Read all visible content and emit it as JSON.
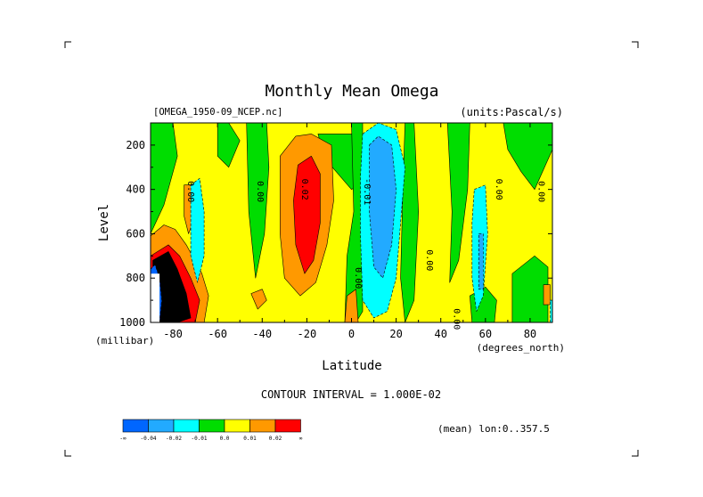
{
  "chart_data": {
    "type": "heatmap",
    "title": "Monthly Mean Omega",
    "dataset": "[OMEGA_1950-09_NCEP.nc]",
    "units": "(units:Pascal/s)",
    "xlabel": "Latitude",
    "xunits": "(degrees_north)",
    "ylabel": "Level",
    "yunits": "(millibar)",
    "xlim": [
      -90,
      90
    ],
    "ylim": [
      1000,
      100
    ],
    "x_ticks": [
      -80,
      -60,
      -40,
      -20,
      0,
      20,
      40,
      60,
      80
    ],
    "x_tick_labels": [
      "-80",
      "-60",
      "-40",
      "-20",
      "0",
      "20",
      "40",
      "60",
      "80"
    ],
    "y_ticks": [
      200,
      400,
      600,
      800,
      1000
    ],
    "y_tick_labels": [
      "200",
      "400",
      "600",
      "800",
      "1000"
    ],
    "contour_interval_text": "CONTOUR INTERVAL = 1.000E-02",
    "mean_text": "(mean) lon:0..357.5",
    "contour_labels": [
      {
        "text": "0.00",
        "lat": -72,
        "level": 410
      },
      {
        "text": "0.00",
        "lat": -41,
        "level": 410
      },
      {
        "text": "0.02",
        "lat": -21,
        "level": 400
      },
      {
        "text": "-0.01",
        "lat": 7,
        "level": 410
      },
      {
        "text": "0.00",
        "lat": 3,
        "level": 800
      },
      {
        "text": "0.00",
        "lat": 35,
        "level": 720
      },
      {
        "text": "0.00",
        "lat": 47,
        "level": 985
      },
      {
        "text": "0.00",
        "lat": 66,
        "level": 400
      },
      {
        "text": "0.00",
        "lat": 85,
        "level": 410
      }
    ],
    "regions": [
      {
        "level": 4,
        "points": [
          [
            -90,
            100
          ],
          [
            90,
            100
          ],
          [
            90,
            1000
          ],
          [
            -90,
            1000
          ]
        ]
      },
      {
        "level": 3,
        "points": [
          [
            -90,
            100
          ],
          [
            -80,
            100
          ],
          [
            -78,
            250
          ],
          [
            -84,
            470
          ],
          [
            -90,
            600
          ]
        ]
      },
      {
        "level": 3,
        "points": [
          [
            -60,
            100
          ],
          [
            -55,
            100
          ],
          [
            -50,
            180
          ],
          [
            -55,
            300
          ],
          [
            -60,
            250
          ]
        ]
      },
      {
        "level": 3,
        "points": [
          [
            -47,
            100
          ],
          [
            -38,
            100
          ],
          [
            -37,
            300
          ],
          [
            -39,
            600
          ],
          [
            -43,
            800
          ],
          [
            -46,
            500
          ]
        ]
      },
      {
        "level": 3,
        "points": [
          [
            -15,
            150
          ],
          [
            20,
            150
          ],
          [
            15,
            300
          ],
          [
            0,
            400
          ],
          [
            -12,
            260
          ]
        ]
      },
      {
        "level": 3,
        "points": [
          [
            0,
            100
          ],
          [
            5,
            100
          ],
          [
            5,
            950
          ],
          [
            2,
            1000
          ],
          [
            -3,
            1000
          ],
          [
            -2,
            700
          ],
          [
            1,
            500
          ]
        ]
      },
      {
        "level": 3,
        "points": [
          [
            24,
            100
          ],
          [
            28,
            100
          ],
          [
            30,
            500
          ],
          [
            28,
            900
          ],
          [
            24,
            1000
          ],
          [
            22,
            800
          ],
          [
            23,
            400
          ]
        ]
      },
      {
        "level": 3,
        "points": [
          [
            43,
            100
          ],
          [
            53,
            100
          ],
          [
            52,
            400
          ],
          [
            48,
            720
          ],
          [
            44,
            820
          ],
          [
            45,
            500
          ]
        ]
      },
      {
        "level": 3,
        "points": [
          [
            53,
            880
          ],
          [
            60,
            840
          ],
          [
            65,
            900
          ],
          [
            64,
            1000
          ],
          [
            54,
            1000
          ]
        ]
      },
      {
        "level": 3,
        "points": [
          [
            68,
            100
          ],
          [
            90,
            100
          ],
          [
            90,
            220
          ],
          [
            82,
            400
          ],
          [
            76,
            320
          ],
          [
            70,
            220
          ]
        ]
      },
      {
        "level": 3,
        "points": [
          [
            72,
            780
          ],
          [
            82,
            700
          ],
          [
            88,
            750
          ],
          [
            88,
            1000
          ],
          [
            72,
            1000
          ]
        ]
      },
      {
        "level": 5,
        "points": [
          [
            -90,
            610
          ],
          [
            -84,
            560
          ],
          [
            -79,
            580
          ],
          [
            -74,
            650
          ],
          [
            -67,
            780
          ],
          [
            -64,
            880
          ],
          [
            -66,
            1000
          ],
          [
            -90,
            1000
          ]
        ]
      },
      {
        "level": 5,
        "points": [
          [
            -75,
            380
          ],
          [
            -71,
            380
          ],
          [
            -70,
            520
          ],
          [
            -73,
            600
          ],
          [
            -75,
            520
          ]
        ]
      },
      {
        "level": 5,
        "points": [
          [
            -32,
            250
          ],
          [
            -25,
            160
          ],
          [
            -18,
            150
          ],
          [
            -9,
            200
          ],
          [
            -8,
            450
          ],
          [
            -11,
            650
          ],
          [
            -16,
            820
          ],
          [
            -23,
            880
          ],
          [
            -30,
            800
          ],
          [
            -32,
            600
          ]
        ]
      },
      {
        "level": 5,
        "points": [
          [
            -45,
            870
          ],
          [
            -40,
            850
          ],
          [
            -38,
            900
          ],
          [
            -42,
            940
          ]
        ]
      },
      {
        "level": 5,
        "points": [
          [
            -2,
            880
          ],
          [
            2,
            850
          ],
          [
            3,
            1000
          ],
          [
            -3,
            1000
          ]
        ]
      },
      {
        "level": 5,
        "points": [
          [
            86,
            830
          ],
          [
            89,
            830
          ],
          [
            89,
            920
          ],
          [
            86,
            920
          ]
        ]
      },
      {
        "level": 6,
        "points": [
          [
            -90,
            700
          ],
          [
            -82,
            650
          ],
          [
            -77,
            700
          ],
          [
            -72,
            800
          ],
          [
            -68,
            900
          ],
          [
            -70,
            1000
          ],
          [
            -90,
            1000
          ]
        ]
      },
      {
        "level": 6,
        "points": [
          [
            -24,
            290
          ],
          [
            -18,
            250
          ],
          [
            -14,
            330
          ],
          [
            -14,
            550
          ],
          [
            -17,
            720
          ],
          [
            -21,
            780
          ],
          [
            -25,
            650
          ],
          [
            -26,
            450
          ]
        ]
      },
      {
        "level": 7,
        "points": [
          [
            -89,
            720
          ],
          [
            -82,
            680
          ],
          [
            -78,
            760
          ],
          [
            -74,
            870
          ],
          [
            -72,
            980
          ],
          [
            -78,
            1000
          ],
          [
            -89,
            1000
          ]
        ]
      },
      {
        "level": 2,
        "points": [
          [
            -72,
            380
          ],
          [
            -68,
            350
          ],
          [
            -66,
            500
          ],
          [
            -66,
            700
          ],
          [
            -69,
            820
          ],
          [
            -72,
            700
          ]
        ]
      },
      {
        "level": 2,
        "points": [
          [
            5,
            150
          ],
          [
            12,
            100
          ],
          [
            20,
            130
          ],
          [
            24,
            300
          ],
          [
            22,
            550
          ],
          [
            20,
            800
          ],
          [
            16,
            950
          ],
          [
            10,
            980
          ],
          [
            5,
            900
          ],
          [
            4,
            600
          ],
          [
            4,
            350
          ]
        ]
      },
      {
        "level": 2,
        "points": [
          [
            55,
            400
          ],
          [
            60,
            380
          ],
          [
            61,
            600
          ],
          [
            59,
            880
          ],
          [
            56,
            950
          ],
          [
            54,
            800
          ],
          [
            54,
            550
          ]
        ]
      },
      {
        "level": 2,
        "points": [
          [
            89,
            900
          ],
          [
            90,
            900
          ],
          [
            90,
            1000
          ],
          [
            89,
            1000
          ]
        ]
      },
      {
        "level": 1,
        "points": [
          [
            8,
            200
          ],
          [
            12,
            160
          ],
          [
            18,
            200
          ],
          [
            20,
            400
          ],
          [
            18,
            650
          ],
          [
            14,
            800
          ],
          [
            10,
            750
          ],
          [
            8,
            500
          ]
        ]
      },
      {
        "level": 1,
        "points": [
          [
            57,
            600
          ],
          [
            59,
            600
          ],
          [
            59,
            850
          ],
          [
            57,
            850
          ]
        ]
      },
      {
        "level": 0,
        "points": [
          [
            -90,
            760
          ],
          [
            -88,
            740
          ],
          [
            -86,
            800
          ],
          [
            -85,
            900
          ],
          [
            -86,
            1000
          ],
          [
            -90,
            1000
          ]
        ]
      }
    ],
    "white_blocks": [
      {
        "lat0": -90,
        "lat1": -86,
        "level0": 780,
        "level1": 1000
      }
    ]
  },
  "colorbar": {
    "colors": [
      "#0066ff",
      "#22aaff",
      "#00ffff",
      "#00dd00",
      "#ffff00",
      "#ff9900",
      "#ff0000"
    ],
    "labels": [
      "-∞",
      "-0.04",
      "-0.02",
      "-0.01",
      "0.0",
      "0.01",
      "0.02",
      "∞"
    ]
  }
}
